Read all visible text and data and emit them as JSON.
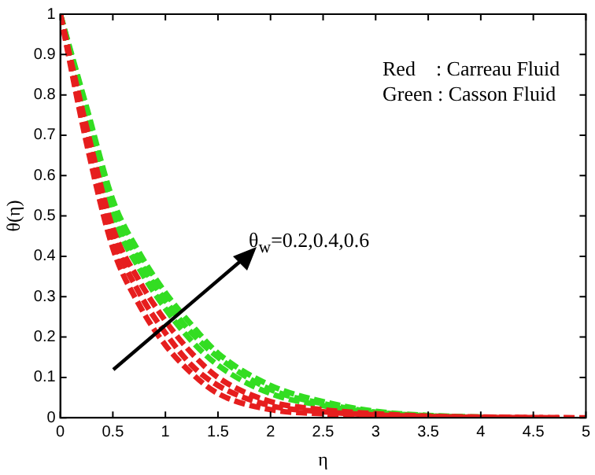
{
  "chart_data": {
    "type": "line",
    "xlabel": "η",
    "ylabel": "θ(η)",
    "xlim": [
      0,
      5
    ],
    "ylim": [
      0,
      1
    ],
    "xticks": [
      0,
      0.5,
      1,
      1.5,
      2,
      2.5,
      3,
      3.5,
      4,
      4.5,
      5
    ],
    "yticks": [
      0,
      0.1,
      0.2,
      0.3,
      0.4,
      0.5,
      0.6,
      0.7,
      0.8,
      0.9,
      1
    ],
    "grid": false,
    "legend": false,
    "marker": "none",
    "line_style": "dashed",
    "series": [
      {
        "color": "#e61e1e",
        "x": [
          0,
          0.25,
          0.5,
          0.75,
          1,
          1.25,
          1.5,
          2,
          2.5,
          3,
          3.5,
          4,
          5
        ],
        "values": [
          1,
          0.68,
          0.42,
          0.28,
          0.18,
          0.11,
          0.06,
          0.02,
          0.01,
          0.005,
          0.002,
          0.001,
          0
        ]
      },
      {
        "color": "#e61e1e",
        "x": [
          0,
          0.25,
          0.5,
          0.75,
          1,
          1.25,
          1.5,
          2,
          2.5,
          3,
          3.5,
          4,
          4.75
        ],
        "values": [
          1,
          0.7,
          0.45,
          0.31,
          0.21,
          0.13,
          0.08,
          0.03,
          0.015,
          0.007,
          0.003,
          0.001,
          0
        ]
      },
      {
        "color": "#e61e1e",
        "x": [
          0,
          0.25,
          0.5,
          0.75,
          1,
          1.25,
          1.5,
          2,
          2.5,
          3,
          3.5,
          4,
          4.5
        ],
        "values": [
          1,
          0.72,
          0.47,
          0.34,
          0.24,
          0.16,
          0.1,
          0.04,
          0.02,
          0.01,
          0.004,
          0.002,
          0
        ]
      },
      {
        "color": "#33dd22",
        "x": [
          0,
          0.25,
          0.5,
          0.75,
          1,
          1.25,
          1.5,
          2,
          2.5,
          3,
          3.5,
          4
        ],
        "values": [
          1,
          0.75,
          0.5,
          0.37,
          0.27,
          0.19,
          0.13,
          0.06,
          0.03,
          0.012,
          0.004,
          0
        ]
      },
      {
        "color": "#33dd22",
        "x": [
          0,
          0.25,
          0.5,
          0.75,
          1,
          1.25,
          1.5,
          2,
          2.5,
          3,
          3.5,
          4.1
        ],
        "values": [
          1,
          0.76,
          0.52,
          0.39,
          0.29,
          0.21,
          0.15,
          0.07,
          0.035,
          0.014,
          0.005,
          0
        ]
      },
      {
        "color": "#33dd22",
        "x": [
          0,
          0.25,
          0.5,
          0.75,
          1,
          1.25,
          1.5,
          2,
          2.5,
          3,
          3.5,
          4.25
        ],
        "values": [
          1,
          0.77,
          0.54,
          0.41,
          0.31,
          0.23,
          0.16,
          0.08,
          0.04,
          0.016,
          0.006,
          0
        ]
      }
    ],
    "annotations": [
      "Red    : Carreau Fluid",
      "Green : Casson Fluid",
      "θ$_{w}$=0.2,0.4,0.6"
    ]
  }
}
